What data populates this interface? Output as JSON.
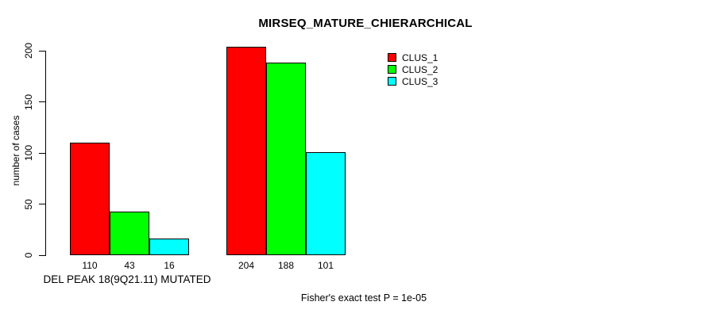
{
  "chart_data": {
    "type": "bar",
    "title": "MIRSEQ_MATURE_CHIERARCHICAL",
    "ylabel": "number of cases",
    "xlabel": "",
    "ylim": [
      0,
      200
    ],
    "yticks": [
      0,
      50,
      100,
      150,
      200
    ],
    "grid": false,
    "legend_position": "top-right",
    "bar_value_labels": true,
    "categories": [
      "DEL PEAK 18(9Q21.11) MUTATED",
      ""
    ],
    "series": [
      {
        "name": "CLUS_1",
        "color": "#ff0000",
        "values": [
          110,
          204
        ]
      },
      {
        "name": "CLUS_2",
        "color": "#00ff00",
        "values": [
          43,
          188
        ]
      },
      {
        "name": "CLUS_3",
        "color": "#00ffff",
        "values": [
          16,
          101
        ]
      }
    ],
    "annotation": "Fisher's exact test P = 1e-05"
  },
  "colors": {
    "axis": "#000000",
    "background": "#ffffff",
    "clus_1": "#ff0000",
    "clus_2": "#00ff00",
    "clus_3": "#00ffff"
  }
}
